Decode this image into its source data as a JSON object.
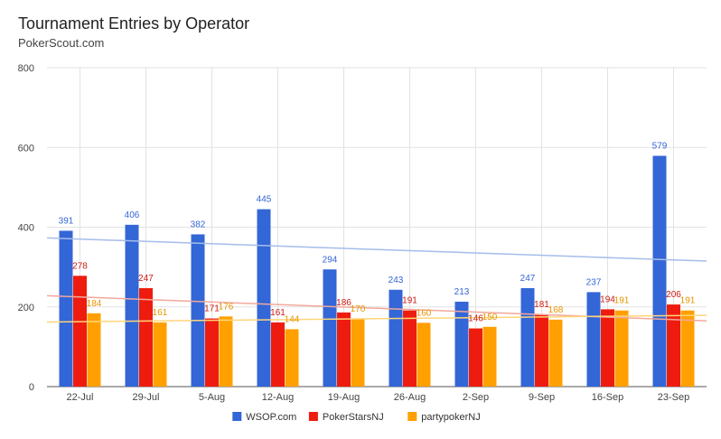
{
  "chart_data": {
    "type": "bar",
    "title": "Tournament Entries by Operator",
    "subtitle": "PokerScout.com",
    "xlabel": "",
    "ylabel": "",
    "categories": [
      "22-Jul",
      "29-Jul",
      "5-Aug",
      "12-Aug",
      "19-Aug",
      "26-Aug",
      "2-Sep",
      "9-Sep",
      "16-Sep",
      "23-Sep"
    ],
    "yticks": [
      "0",
      "200",
      "400",
      "600",
      "800"
    ],
    "ylim": [
      0,
      800
    ],
    "grid": true,
    "legend_position": "bottom",
    "series": [
      {
        "name": "WSOP.com",
        "color": "#3366d6",
        "label_color": "#3366d6",
        "trend_color": "#a6bdea",
        "values": [
          391,
          406,
          382,
          445,
          294,
          243,
          213,
          247,
          237,
          579
        ],
        "trendline": [
          373,
          315
        ]
      },
      {
        "name": "PokerStarsNJ",
        "color": "#ee1c0e",
        "label_color": "#cc1a10",
        "trend_color": "#f2a89a",
        "values": [
          278,
          247,
          171,
          161,
          186,
          191,
          146,
          181,
          194,
          206
        ],
        "trendline": [
          228,
          165
        ]
      },
      {
        "name": "partypokerNJ",
        "color": "#ffa000",
        "label_color": "#e69500",
        "trend_color": "#ffd57a",
        "values": [
          184,
          161,
          176,
          144,
          170,
          160,
          150,
          168,
          191,
          191
        ],
        "trendline": [
          162,
          179
        ]
      }
    ]
  }
}
